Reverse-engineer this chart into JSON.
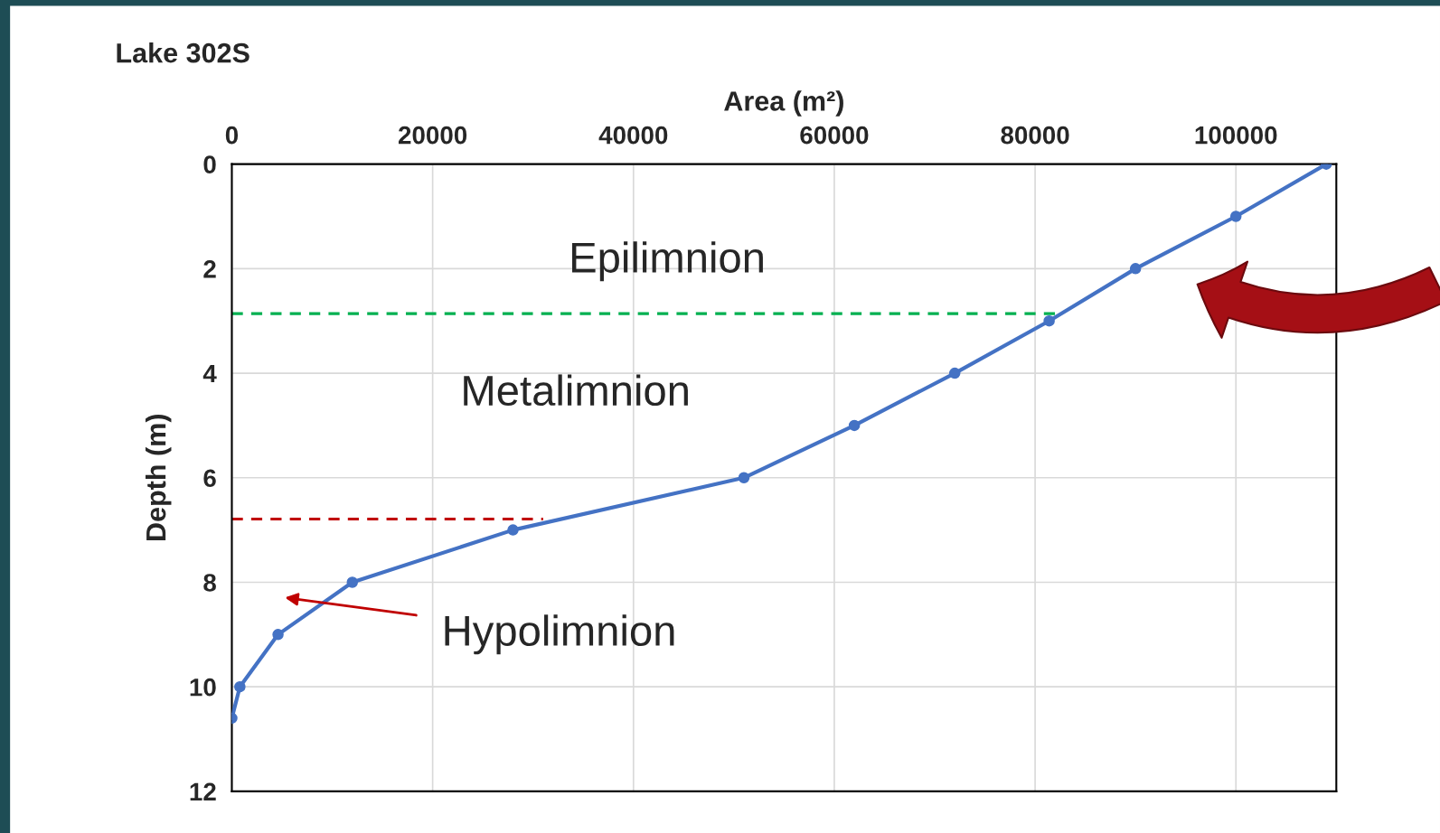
{
  "chart_data": {
    "type": "line",
    "title": "Lake 302S",
    "xlabel": "Area (m²)",
    "ylabel": "Depth (m)",
    "xlim": [
      0,
      110000
    ],
    "xticks": [
      0,
      20000,
      40000,
      60000,
      80000,
      100000
    ],
    "ylim": [
      12,
      0
    ],
    "yticks": [
      0,
      2,
      4,
      6,
      8,
      10,
      12
    ],
    "grid": true,
    "series": [
      {
        "color": "#4472c4",
        "marker": "circle",
        "line_style": "solid",
        "x": [
          109000,
          100000,
          90000,
          81400,
          72000,
          62000,
          51000,
          28000,
          12000,
          4600,
          800,
          0
        ],
        "values": [
          0,
          1,
          2,
          3,
          4,
          5,
          6,
          7,
          8,
          9,
          10,
          10.6
        ]
      },
      {
        "color": "#00b050",
        "marker": "none",
        "line_style": "dashed",
        "x": [
          0,
          82000
        ],
        "values": [
          2.86,
          2.86
        ]
      },
      {
        "color": "#c00000",
        "marker": "none",
        "line_style": "dashed",
        "x": [
          0,
          31000
        ],
        "values": [
          6.79,
          6.79
        ]
      }
    ],
    "annotations": [
      "Epilimnion",
      "Metalimnion",
      "Hypolimnion"
    ]
  }
}
